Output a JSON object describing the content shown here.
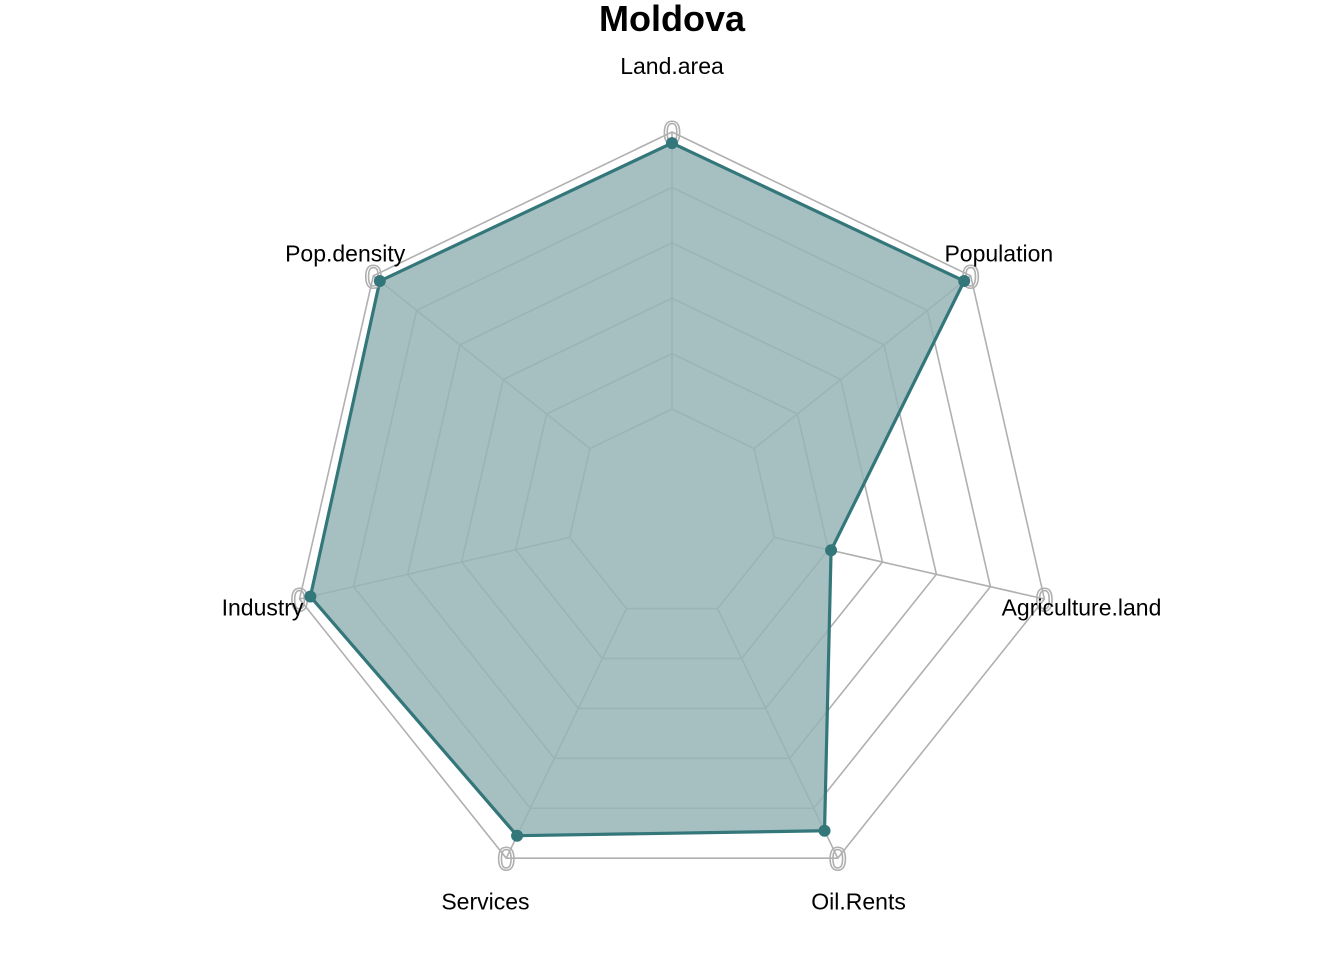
{
  "chart_data": {
    "type": "radar",
    "title": "Moldova",
    "axes": [
      "Land.area",
      "Population",
      "Agriculture.land",
      "Oil.Rents",
      "Services",
      "Industry",
      "Pop.density"
    ],
    "axis_caps": [
      "0",
      "0",
      "0",
      "0",
      "0",
      "0",
      "0"
    ],
    "rlim": [
      0,
      1
    ],
    "grid_levels": [
      0.2,
      0.4,
      0.6,
      0.8,
      1.0
    ],
    "grid": true,
    "series": [
      {
        "values": [
          0.96,
          0.97,
          0.21,
          0.89,
          0.91,
          0.96,
          0.97
        ],
        "line_color": "#34777A",
        "fill_color": "#96B5B7"
      }
    ]
  },
  "colors": {
    "grid": "#B0B0B0",
    "background": "#FFFFFF",
    "text": "#000000"
  }
}
